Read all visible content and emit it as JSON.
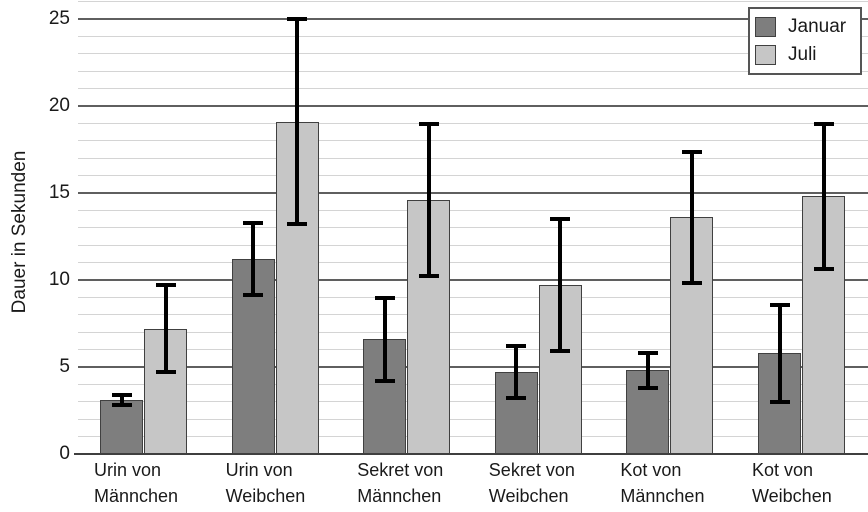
{
  "chart_data": {
    "type": "bar",
    "title": "",
    "xlabel": "",
    "ylabel": "Dauer in Sekunden",
    "categories": [
      "Urin von Männchen",
      "Urin von Weibchen",
      "Sekret von Männchen",
      "Sekret von Weibchen",
      "Kot von Männchen",
      "Kot von Weibchen"
    ],
    "category_lines": [
      [
        "Urin von",
        "Männchen"
      ],
      [
        "Urin von",
        "Weibchen"
      ],
      [
        "Sekret von",
        "Männchen"
      ],
      [
        "Sekret von",
        "Weibchen"
      ],
      [
        "Kot von",
        "Männchen"
      ],
      [
        "Kot von",
        "Weibchen"
      ]
    ],
    "series": [
      {
        "name": "Januar",
        "color": "#7e7e7e",
        "values": [
          3.1,
          11.2,
          6.6,
          4.7,
          4.8,
          5.8
        ],
        "error_low": [
          2.7,
          9.0,
          4.1,
          3.1,
          3.7,
          2.9
        ],
        "error_high": [
          3.5,
          13.4,
          9.1,
          6.3,
          5.9,
          8.7
        ]
      },
      {
        "name": "Juli",
        "color": "#c6c6c6",
        "values": [
          7.2,
          19.1,
          14.6,
          9.7,
          13.6,
          14.8
        ],
        "error_low": [
          4.6,
          13.1,
          10.1,
          5.8,
          9.7,
          10.5
        ],
        "error_high": [
          9.8,
          25.1,
          19.1,
          13.6,
          17.5,
          19.1
        ]
      }
    ],
    "ylim": [
      0,
      26.1
    ],
    "y_major_ticks": [
      0,
      5,
      10,
      15,
      20,
      25
    ],
    "y_minor_step": 1,
    "grid": "horizontal major (5-step, dark) and minor (1-step, light), no vertical grid",
    "legend_position": "top-right",
    "legend_entries": [
      "Januar",
      "Juli"
    ],
    "error_bars": "black vertical stems with flat caps on every bar"
  },
  "colors": {
    "background": "#ffffff",
    "text": "#1a1a1a",
    "januar_fill": "#7e7e7e",
    "juli_fill": "#c6c6c6",
    "bar_border": "#404040",
    "major_grid": "#5f5f5f",
    "minor_grid": "#d4d4d4",
    "axis_line": "#3f3f3f",
    "error_bar": "#000000",
    "legend_border": "#555555"
  }
}
